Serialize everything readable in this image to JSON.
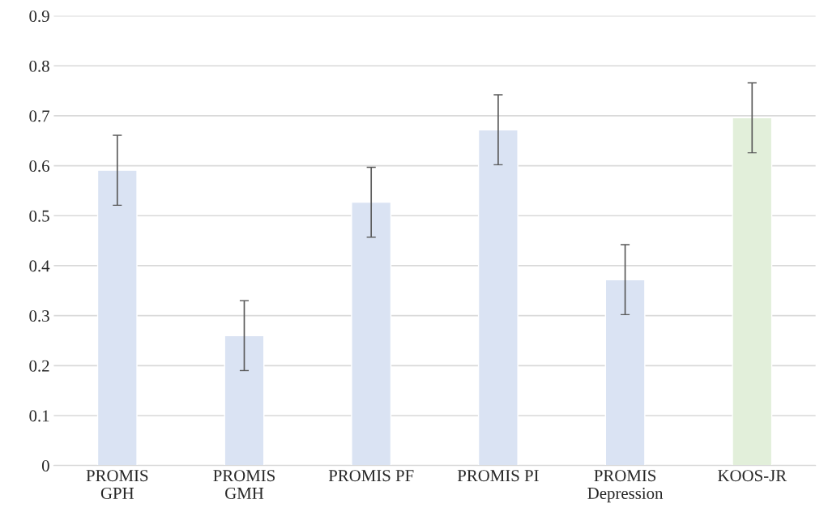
{
  "chart_data": {
    "type": "bar",
    "categories": [
      "PROMIS\nGPH",
      "PROMIS\nGMH",
      "PROMIS PF",
      "PROMIS PI",
      "PROMIS\nDepression",
      "KOOS-JR"
    ],
    "values": [
      0.591,
      0.26,
      0.527,
      0.672,
      0.372,
      0.696
    ],
    "errors": [
      0.07,
      0.07,
      0.07,
      0.07,
      0.07,
      0.07
    ],
    "colors": [
      "#dae3f3",
      "#dae3f3",
      "#dae3f3",
      "#dae3f3",
      "#dae3f3",
      "#e2efda"
    ],
    "ylim": [
      0,
      0.9
    ],
    "yticks": [
      0,
      0.1,
      0.2,
      0.3,
      0.4,
      0.5,
      0.6,
      0.7,
      0.8,
      0.9
    ],
    "grid": "y",
    "legend": false
  }
}
